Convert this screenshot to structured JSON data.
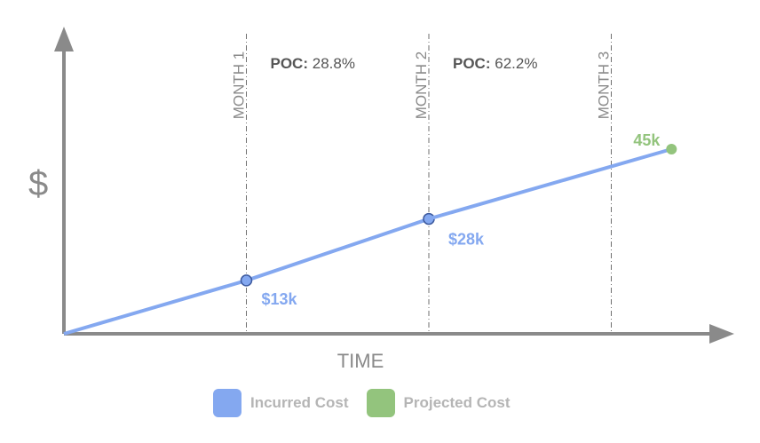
{
  "chart_data": {
    "type": "line",
    "xlabel": "TIME",
    "ylabel": "$",
    "x_markers": [
      "MONTH 1",
      "MONTH 2",
      "MONTH 3"
    ],
    "annotations": [
      {
        "key": "POC:",
        "value": "28.8%"
      },
      {
        "key": "POC:",
        "value": "62.2%"
      }
    ],
    "series": [
      {
        "name": "Incurred Cost",
        "color": "#84a8f0",
        "x": [
          0,
          1,
          2
        ],
        "y": [
          0,
          13,
          28
        ],
        "labels": [
          "",
          "$13k",
          "$28k"
        ]
      },
      {
        "name": "Projected Cost",
        "color": "#93c47d",
        "x": [
          2,
          3.33
        ],
        "y": [
          28,
          45
        ],
        "labels": [
          "",
          "45k"
        ]
      }
    ],
    "xlim": [
      0,
      3.65
    ],
    "ylim": [
      0,
      52
    ],
    "legend_position": "bottom-center"
  }
}
